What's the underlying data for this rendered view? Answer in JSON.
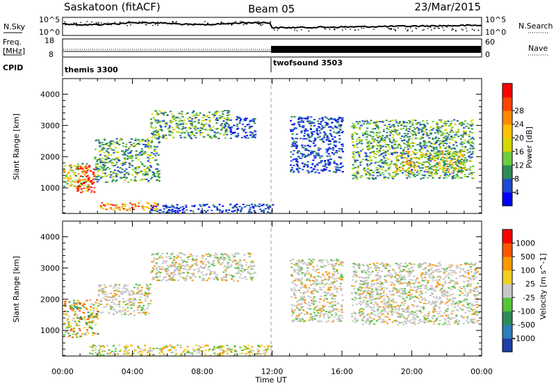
{
  "header": {
    "station": "Saskatoon (fitACF)",
    "beam": "Beam 05",
    "date": "23/Mar/2015"
  },
  "sky_panel": {
    "left_label": "N.Sky",
    "right_label": "N.Search",
    "left_ticks": [
      "10^5",
      "10^0"
    ],
    "right_ticks": [
      "10^5",
      "10^0"
    ]
  },
  "freq_panel": {
    "left_label_1": "Freq.",
    "left_label_2": "[MHz]",
    "right_label": "Nave",
    "left_ticks": [
      "18",
      "8"
    ],
    "right_ticks": [
      "60",
      "0"
    ]
  },
  "cpid": {
    "label": "CPID",
    "modes": [
      {
        "name": "themis 3300",
        "start_hour": 0
      },
      {
        "name": "twofsound 3503",
        "start_hour": 12
      }
    ]
  },
  "axes": {
    "ylabel": "Slant Range [km]",
    "xlabel": "Time UT",
    "y_ticks": [
      "1000",
      "2000",
      "3000",
      "4000"
    ],
    "x_ticks": [
      "00:00",
      "04:00",
      "08:00",
      "12:00",
      "16:00",
      "20:00",
      "00:00"
    ]
  },
  "chart_data": [
    {
      "type": "heatmap",
      "title": "",
      "xlabel": "Time UT",
      "ylabel": "Slant Range [km]",
      "xlim": [
        0,
        24
      ],
      "ylim": [
        180,
        4500
      ],
      "colorbar": {
        "label": "Power [dB]",
        "ticks": [
          "4",
          "8",
          "12",
          "16",
          "20",
          "24",
          "28"
        ],
        "colors": [
          "#0000ff",
          "#1e4bd0",
          "#2e8b57",
          "#6dcc3c",
          "#d6d600",
          "#ffc200",
          "#ff8a00",
          "#ff4400",
          "#ff0000"
        ]
      },
      "regions": [
        {
          "x": [
            0.0,
            1.5
          ],
          "y": [
            1000,
            1800
          ],
          "level": "mid"
        },
        {
          "x": [
            0.8,
            1.8
          ],
          "y": [
            850,
            1750
          ],
          "level": "high"
        },
        {
          "x": [
            1.8,
            5.5
          ],
          "y": [
            1200,
            2600
          ],
          "level": "low-mid"
        },
        {
          "x": [
            5.0,
            9.5
          ],
          "y": [
            2600,
            3500
          ],
          "level": "low-mid"
        },
        {
          "x": [
            9.5,
            11.0
          ],
          "y": [
            2600,
            3300
          ],
          "level": "low"
        },
        {
          "x": [
            2.0,
            5.5
          ],
          "y": [
            300,
            550
          ],
          "level": "mid-high"
        },
        {
          "x": [
            5.0,
            12.0
          ],
          "y": [
            200,
            500
          ],
          "level": "low"
        },
        {
          "x": [
            13.0,
            16.0
          ],
          "y": [
            1500,
            3300
          ],
          "level": "low"
        },
        {
          "x": [
            16.5,
            23.5
          ],
          "y": [
            1300,
            3200
          ],
          "level": "low-mid"
        },
        {
          "x": [
            19.0,
            23.0
          ],
          "y": [
            1500,
            2200
          ],
          "level": "mid"
        }
      ]
    },
    {
      "type": "heatmap",
      "title": "",
      "xlabel": "Time UT",
      "ylabel": "Slant Range [km]",
      "xlim": [
        0,
        24
      ],
      "ylim": [
        180,
        4500
      ],
      "colorbar": {
        "label": "Velocity [m s^-1]",
        "ticks": [
          "1000",
          "500",
          "100",
          "25",
          "-25",
          "-100",
          "-500",
          "-1000"
        ],
        "colors": [
          "#1f3ea8",
          "#2c7fb8",
          "#2e8b57",
          "#56c43a",
          "#c8c8c8",
          "#f0d020",
          "#ff9800",
          "#ff5500",
          "#ff0000"
        ]
      },
      "regions": [
        {
          "x": [
            0.0,
            2.0
          ],
          "y": [
            800,
            2000
          ],
          "level": "mixed"
        },
        {
          "x": [
            2.0,
            5.0
          ],
          "y": [
            1500,
            2500
          ],
          "level": "ground-scatter"
        },
        {
          "x": [
            5.0,
            11.0
          ],
          "y": [
            2600,
            3500
          ],
          "level": "ground-scatter"
        },
        {
          "x": [
            1.5,
            12.0
          ],
          "y": [
            200,
            550
          ],
          "level": "slow-negative"
        },
        {
          "x": [
            13.0,
            16.0
          ],
          "y": [
            1300,
            3300
          ],
          "level": "ground-scatter"
        },
        {
          "x": [
            16.5,
            23.8
          ],
          "y": [
            1200,
            3200
          ],
          "level": "ground-scatter"
        }
      ]
    }
  ]
}
